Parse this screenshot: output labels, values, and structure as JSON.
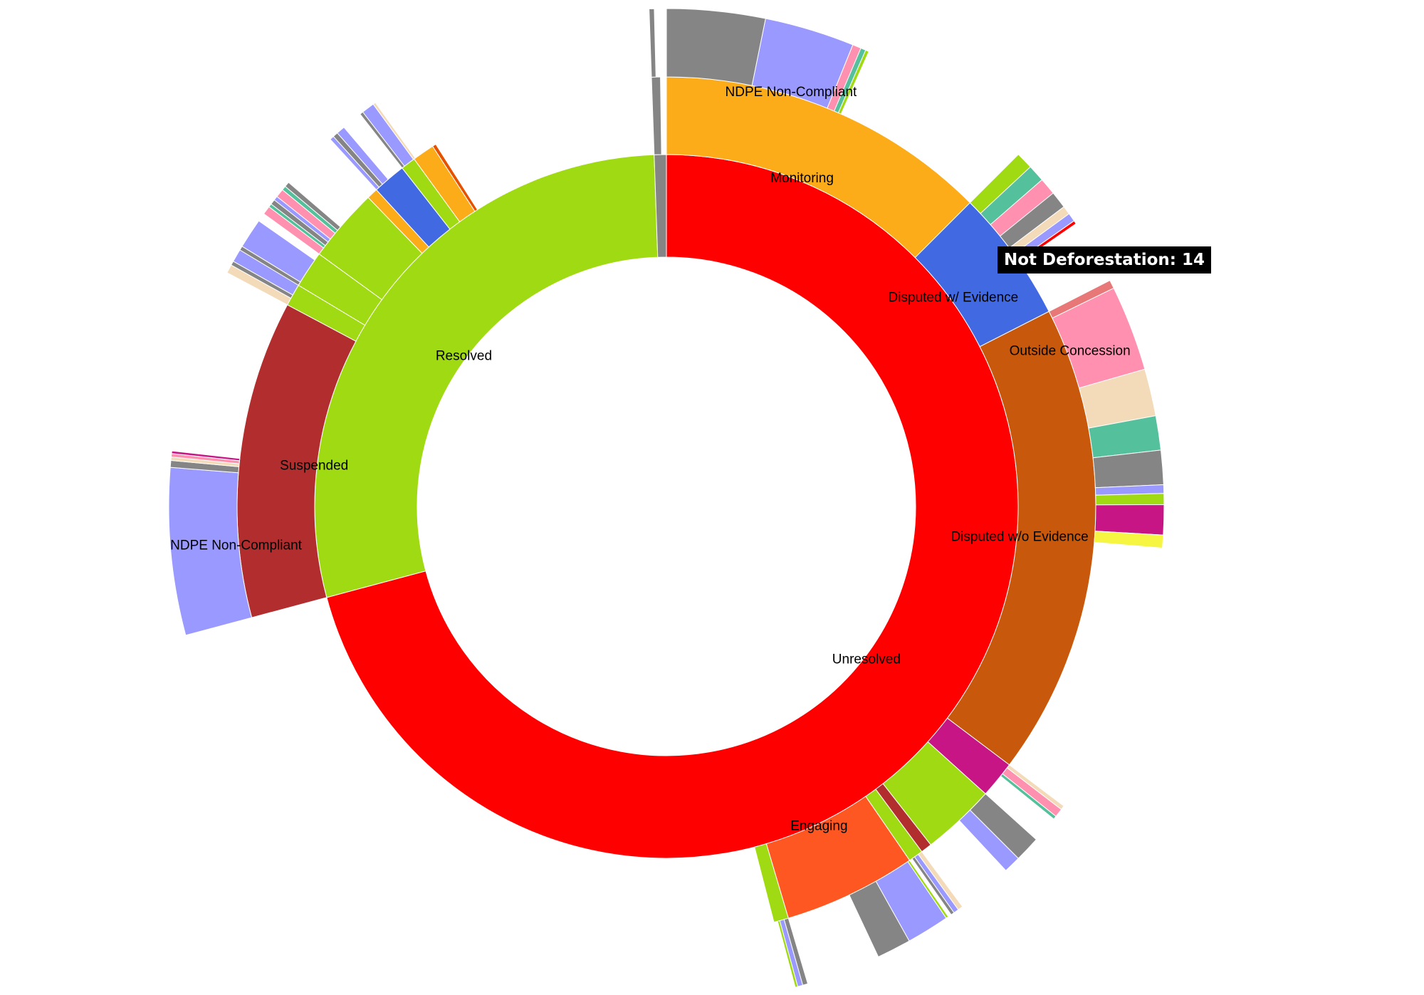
{
  "chart_data": {
    "type": "sunburst",
    "tooltip": "Not Deforestation: 14",
    "nodes": [
      {
        "name": "Unresolved",
        "value": 255,
        "color": "#ff0000",
        "children": [
          {
            "name": "Monitoring",
            "value": 45,
            "color": "#fbac18",
            "children": [
              {
                "value": 11.5,
                "color": "#858585"
              },
              {
                "name": "NDPE Non-Compliant",
                "value": 10.5,
                "color": "#9999ff"
              },
              {
                "value": 1,
                "color": "#ff90b0"
              },
              {
                "value": 0.6,
                "color": "#55c19c"
              },
              {
                "value": 0.4,
                "color": "#a0da12"
              }
            ]
          },
          {
            "name": "Disputed w/ Evidence",
            "value": 18,
            "color": "#4169e1",
            "children": [
              {
                "value": 2,
                "color": "#a0da12"
              },
              {
                "value": 2,
                "color": "#55c19c"
              },
              {
                "value": 2,
                "color": "#ff90b0"
              },
              {
                "value": 2,
                "color": "#858585"
              },
              {
                "value": 1,
                "color": "#f3dbb9"
              },
              {
                "value": 1,
                "color": "#9999ff"
              },
              {
                "value": 0.4,
                "color": "#ff0000"
              }
            ]
          },
          {
            "name": "Disputed w/o Evidence",
            "value": 64,
            "color": "#c8580c",
            "children": [
              {
                "value": 1,
                "color": "#e87878"
              },
              {
                "name": "Outside Concession",
                "value": 10,
                "color": "#ff90b0"
              },
              {
                "value": 5.5,
                "color": "#f3dbb9"
              },
              {
                "value": 4,
                "color": "#55c19c"
              },
              {
                "value": 4,
                "color": "#858585"
              },
              {
                "value": 1,
                "color": "#9999ff"
              },
              {
                "value": 1.3,
                "color": "#a0da12"
              },
              {
                "value": 3.5,
                "color": "#c71585"
              },
              {
                "value": 1.5,
                "color": "#f5f542"
              }
            ]
          },
          {
            "value": 5,
            "color": "#c71585",
            "children": [
              {
                "value": 0.5,
                "color": "#f3dbb9"
              },
              {
                "value": 1,
                "color": "#ff90b0"
              },
              {
                "value": 0.4,
                "color": "#55c19c"
              }
            ]
          },
          {
            "value": 10,
            "color": "#a0da12",
            "children": [
              {
                "value": 3,
                "color": "#858585"
              },
              {
                "value": 2,
                "color": "#9999ff"
              }
            ]
          },
          {
            "value": 1.5,
            "color": "#b22e2e"
          },
          {
            "value": 2,
            "color": "#a0da12",
            "children": [
              {
                "value": 0.6,
                "color": "#f3dbb9"
              },
              {
                "value": 0.6,
                "color": "#9999ff"
              },
              {
                "value": 0.4,
                "color": "#858585"
              }
            ]
          },
          {
            "name": "Engaging",
            "value": 18,
            "color": "#ff5722",
            "children": [
              {
                "value": 0.3,
                "color": "#a0da12"
              },
              {
                "value": 5,
                "color": "#9999ff"
              },
              {
                "value": 4,
                "color": "#858585"
              }
            ]
          },
          {
            "value": 2,
            "color": "#a0da12",
            "children": [
              {
                "value": 0.6,
                "color": "#858585"
              },
              {
                "value": 0.6,
                "color": "#9999ff"
              },
              {
                "value": 0.3,
                "color": "#a0da12"
              }
            ]
          }
        ]
      },
      {
        "name": "Resolved",
        "value": 103,
        "color": "#a0da12",
        "children": [
          {
            "name": "Suspended",
            "value": 43,
            "color": "#b22e2e",
            "children": [
              {
                "name": "NDPE Non-Compliant",
                "value": 19.5,
                "color": "#9999ff"
              },
              {
                "value": 0.8,
                "color": "#858585"
              },
              {
                "value": 0.4,
                "color": "#f3dbb9"
              },
              {
                "value": 0.4,
                "color": "#ff90b0"
              },
              {
                "value": 0.3,
                "color": "#c71585"
              }
            ]
          },
          {
            "value": 3,
            "color": "#a0da12",
            "children": [
              {
                "value": 1,
                "color": "#f3dbb9"
              },
              {
                "value": 0.5,
                "color": "#858585"
              },
              {
                "value": 2,
                "color": "#9999ff"
              }
            ]
          },
          {
            "value": 5,
            "color": "#a0da12",
            "children": [
              {
                "value": 0.5,
                "color": "#858585"
              },
              {
                "value": 3.5,
                "color": "#9999ff"
              }
            ]
          },
          {
            "value": 10,
            "color": "#a0da12",
            "children": [
              {
                "value": 1,
                "color": "#ff90b0"
              },
              {
                "value": 0.4,
                "color": "#55c19c"
              },
              {
                "value": 0.6,
                "color": "#858585"
              },
              {
                "value": 0.5,
                "color": "#9999ff"
              },
              {
                "value": 1,
                "color": "#ff90b0"
              },
              {
                "value": 0.5,
                "color": "#55c19c"
              },
              {
                "value": 0.6,
                "color": "#858585"
              }
            ]
          },
          {
            "value": 1.5,
            "color": "#fbac18"
          },
          {
            "value": 4.5,
            "color": "#4169e1",
            "children": [
              {
                "value": 0.5,
                "color": "#9999ff"
              },
              {
                "value": 0.6,
                "color": "#858585"
              },
              {
                "value": 1,
                "color": "#9999ff"
              }
            ]
          },
          {
            "value": 2,
            "color": "#a0da12",
            "children": [
              {
                "value": 0.4,
                "color": "#858585"
              },
              {
                "value": 1.5,
                "color": "#9999ff"
              },
              {
                "value": 0.3,
                "color": "#f3dbb9"
              }
            ]
          },
          {
            "value": 3,
            "color": "#fbac18"
          },
          {
            "value": 0.5,
            "color": "#e65100"
          }
        ]
      },
      {
        "value": 2,
        "color": "#858585",
        "children": [
          {
            "value": 1.2,
            "color": "#858585",
            "children": [
              {
                "value": 0.6,
                "color": "#858585"
              }
            ]
          }
        ]
      }
    ]
  }
}
